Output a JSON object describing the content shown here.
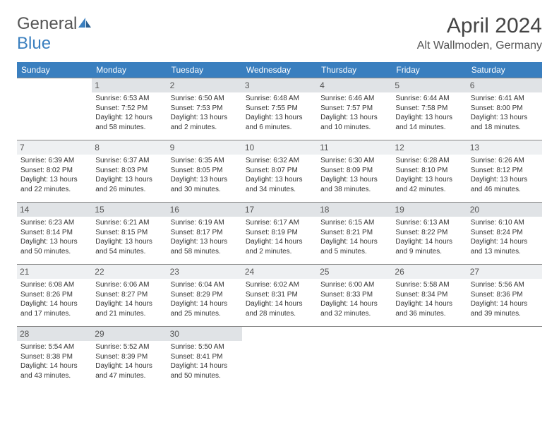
{
  "logo": {
    "text1": "General",
    "text2": "Blue"
  },
  "title": "April 2024",
  "location": "Alt Wallmoden, Germany",
  "colors": {
    "header_bg": "#3a7fbf",
    "header_text": "#ffffff",
    "daynum_bg_odd": "#e0e3e6",
    "daynum_bg_even": "#eef0f2",
    "border": "#888888",
    "text": "#333333"
  },
  "weekdays": [
    "Sunday",
    "Monday",
    "Tuesday",
    "Wednesday",
    "Thursday",
    "Friday",
    "Saturday"
  ],
  "weeks": [
    [
      null,
      {
        "n": "1",
        "sunrise": "Sunrise: 6:53 AM",
        "sunset": "Sunset: 7:52 PM",
        "daylight": "Daylight: 12 hours and 58 minutes."
      },
      {
        "n": "2",
        "sunrise": "Sunrise: 6:50 AM",
        "sunset": "Sunset: 7:53 PM",
        "daylight": "Daylight: 13 hours and 2 minutes."
      },
      {
        "n": "3",
        "sunrise": "Sunrise: 6:48 AM",
        "sunset": "Sunset: 7:55 PM",
        "daylight": "Daylight: 13 hours and 6 minutes."
      },
      {
        "n": "4",
        "sunrise": "Sunrise: 6:46 AM",
        "sunset": "Sunset: 7:57 PM",
        "daylight": "Daylight: 13 hours and 10 minutes."
      },
      {
        "n": "5",
        "sunrise": "Sunrise: 6:44 AM",
        "sunset": "Sunset: 7:58 PM",
        "daylight": "Daylight: 13 hours and 14 minutes."
      },
      {
        "n": "6",
        "sunrise": "Sunrise: 6:41 AM",
        "sunset": "Sunset: 8:00 PM",
        "daylight": "Daylight: 13 hours and 18 minutes."
      }
    ],
    [
      {
        "n": "7",
        "sunrise": "Sunrise: 6:39 AM",
        "sunset": "Sunset: 8:02 PM",
        "daylight": "Daylight: 13 hours and 22 minutes."
      },
      {
        "n": "8",
        "sunrise": "Sunrise: 6:37 AM",
        "sunset": "Sunset: 8:03 PM",
        "daylight": "Daylight: 13 hours and 26 minutes."
      },
      {
        "n": "9",
        "sunrise": "Sunrise: 6:35 AM",
        "sunset": "Sunset: 8:05 PM",
        "daylight": "Daylight: 13 hours and 30 minutes."
      },
      {
        "n": "10",
        "sunrise": "Sunrise: 6:32 AM",
        "sunset": "Sunset: 8:07 PM",
        "daylight": "Daylight: 13 hours and 34 minutes."
      },
      {
        "n": "11",
        "sunrise": "Sunrise: 6:30 AM",
        "sunset": "Sunset: 8:09 PM",
        "daylight": "Daylight: 13 hours and 38 minutes."
      },
      {
        "n": "12",
        "sunrise": "Sunrise: 6:28 AM",
        "sunset": "Sunset: 8:10 PM",
        "daylight": "Daylight: 13 hours and 42 minutes."
      },
      {
        "n": "13",
        "sunrise": "Sunrise: 6:26 AM",
        "sunset": "Sunset: 8:12 PM",
        "daylight": "Daylight: 13 hours and 46 minutes."
      }
    ],
    [
      {
        "n": "14",
        "sunrise": "Sunrise: 6:23 AM",
        "sunset": "Sunset: 8:14 PM",
        "daylight": "Daylight: 13 hours and 50 minutes."
      },
      {
        "n": "15",
        "sunrise": "Sunrise: 6:21 AM",
        "sunset": "Sunset: 8:15 PM",
        "daylight": "Daylight: 13 hours and 54 minutes."
      },
      {
        "n": "16",
        "sunrise": "Sunrise: 6:19 AM",
        "sunset": "Sunset: 8:17 PM",
        "daylight": "Daylight: 13 hours and 58 minutes."
      },
      {
        "n": "17",
        "sunrise": "Sunrise: 6:17 AM",
        "sunset": "Sunset: 8:19 PM",
        "daylight": "Daylight: 14 hours and 2 minutes."
      },
      {
        "n": "18",
        "sunrise": "Sunrise: 6:15 AM",
        "sunset": "Sunset: 8:21 PM",
        "daylight": "Daylight: 14 hours and 5 minutes."
      },
      {
        "n": "19",
        "sunrise": "Sunrise: 6:13 AM",
        "sunset": "Sunset: 8:22 PM",
        "daylight": "Daylight: 14 hours and 9 minutes."
      },
      {
        "n": "20",
        "sunrise": "Sunrise: 6:10 AM",
        "sunset": "Sunset: 8:24 PM",
        "daylight": "Daylight: 14 hours and 13 minutes."
      }
    ],
    [
      {
        "n": "21",
        "sunrise": "Sunrise: 6:08 AM",
        "sunset": "Sunset: 8:26 PM",
        "daylight": "Daylight: 14 hours and 17 minutes."
      },
      {
        "n": "22",
        "sunrise": "Sunrise: 6:06 AM",
        "sunset": "Sunset: 8:27 PM",
        "daylight": "Daylight: 14 hours and 21 minutes."
      },
      {
        "n": "23",
        "sunrise": "Sunrise: 6:04 AM",
        "sunset": "Sunset: 8:29 PM",
        "daylight": "Daylight: 14 hours and 25 minutes."
      },
      {
        "n": "24",
        "sunrise": "Sunrise: 6:02 AM",
        "sunset": "Sunset: 8:31 PM",
        "daylight": "Daylight: 14 hours and 28 minutes."
      },
      {
        "n": "25",
        "sunrise": "Sunrise: 6:00 AM",
        "sunset": "Sunset: 8:33 PM",
        "daylight": "Daylight: 14 hours and 32 minutes."
      },
      {
        "n": "26",
        "sunrise": "Sunrise: 5:58 AM",
        "sunset": "Sunset: 8:34 PM",
        "daylight": "Daylight: 14 hours and 36 minutes."
      },
      {
        "n": "27",
        "sunrise": "Sunrise: 5:56 AM",
        "sunset": "Sunset: 8:36 PM",
        "daylight": "Daylight: 14 hours and 39 minutes."
      }
    ],
    [
      {
        "n": "28",
        "sunrise": "Sunrise: 5:54 AM",
        "sunset": "Sunset: 8:38 PM",
        "daylight": "Daylight: 14 hours and 43 minutes."
      },
      {
        "n": "29",
        "sunrise": "Sunrise: 5:52 AM",
        "sunset": "Sunset: 8:39 PM",
        "daylight": "Daylight: 14 hours and 47 minutes."
      },
      {
        "n": "30",
        "sunrise": "Sunrise: 5:50 AM",
        "sunset": "Sunset: 8:41 PM",
        "daylight": "Daylight: 14 hours and 50 minutes."
      },
      null,
      null,
      null,
      null
    ]
  ]
}
